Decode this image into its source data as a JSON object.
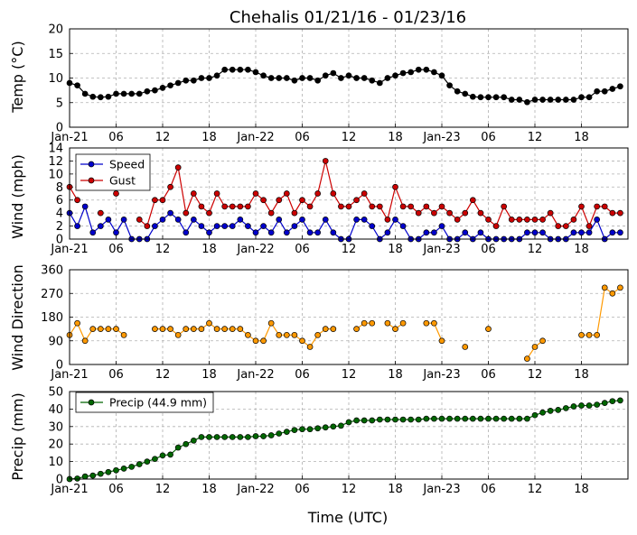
{
  "title": "Chehalis 01/21/16 - 01/23/16",
  "xlabel": "Time (UTC)",
  "x_tick_labels": [
    "Jan-21",
    "06",
    "12",
    "18",
    "Jan-22",
    "06",
    "12",
    "18",
    "Jan-23",
    "06",
    "12",
    "18"
  ],
  "chart_data": [
    {
      "type": "line",
      "ylabel": "Temp (°C)",
      "ylim": [
        0,
        20
      ],
      "yticks": [
        0,
        5,
        10,
        15,
        20
      ],
      "grid": true,
      "x_hours": [
        0,
        1,
        2,
        3,
        4,
        5,
        6,
        7,
        8,
        9,
        10,
        11,
        12,
        13,
        14,
        15,
        16,
        17,
        18,
        19,
        20,
        21,
        22,
        23,
        24,
        25,
        26,
        27,
        28,
        29,
        30,
        31,
        32,
        33,
        34,
        35,
        36,
        37,
        38,
        39,
        40,
        41,
        42,
        43,
        44,
        45,
        46,
        47,
        48,
        49,
        50,
        51,
        52,
        53,
        54,
        55,
        56,
        57,
        58,
        59,
        60,
        61,
        62,
        63,
        64,
        65,
        66,
        67,
        68,
        69,
        70,
        71
      ],
      "series": [
        {
          "color": "#000000",
          "values": [
            9,
            8.5,
            6.8,
            6.2,
            6.1,
            6.2,
            6.8,
            6.8,
            6.8,
            6.8,
            7.3,
            7.5,
            8,
            8.5,
            9,
            9.5,
            9.5,
            10,
            10,
            10.5,
            11.7,
            11.7,
            11.7,
            11.7,
            11.2,
            10.5,
            10,
            10,
            10,
            9.5,
            10,
            10,
            9.5,
            10.5,
            11,
            10,
            10.5,
            10,
            10,
            9.5,
            9,
            10,
            10.5,
            11,
            11.2,
            11.7,
            11.7,
            11.2,
            10.5,
            8.5,
            7.3,
            6.8,
            6.2,
            6.1,
            6.1,
            6.1,
            6.1,
            5.6,
            5.6,
            5.1,
            5.6,
            5.6,
            5.6,
            5.6,
            5.6,
            5.6,
            6.1,
            6.1,
            7.3,
            7.3,
            7.8,
            8.3
          ]
        }
      ]
    },
    {
      "type": "line",
      "ylabel": "Wind (mph)",
      "ylim": [
        0,
        14
      ],
      "yticks": [
        0,
        2,
        4,
        6,
        8,
        10,
        12,
        14
      ],
      "legend": "upper-left",
      "grid": true,
      "x_hours": [
        0,
        1,
        2,
        3,
        4,
        5,
        6,
        7,
        8,
        9,
        10,
        11,
        12,
        13,
        14,
        15,
        16,
        17,
        18,
        19,
        20,
        21,
        22,
        23,
        24,
        25,
        26,
        27,
        28,
        29,
        30,
        31,
        32,
        33,
        34,
        35,
        36,
        37,
        38,
        39,
        40,
        41,
        42,
        43,
        44,
        45,
        46,
        47,
        48,
        49,
        50,
        51,
        52,
        53,
        54,
        55,
        56,
        57,
        58,
        59,
        60,
        61,
        62,
        63,
        64,
        65,
        66,
        67,
        68,
        69,
        70,
        71
      ],
      "series": [
        {
          "name": "Speed",
          "color": "#0000cc",
          "values": [
            4,
            2,
            5,
            1,
            2,
            3,
            1,
            3,
            0,
            0,
            0,
            2,
            3,
            4,
            3,
            1,
            3,
            2,
            1,
            2,
            2,
            2,
            3,
            2,
            1,
            2,
            1,
            3,
            1,
            2,
            3,
            1,
            1,
            3,
            1,
            0,
            0,
            3,
            3,
            2,
            0,
            1,
            3,
            2,
            0,
            0,
            1,
            1,
            2,
            0,
            0,
            1,
            0,
            1,
            0,
            0,
            0,
            0,
            0,
            1,
            1,
            1,
            0,
            0,
            0,
            1,
            1,
            1,
            3,
            0,
            1,
            1
          ]
        },
        {
          "name": "Gust",
          "color": "#cc0000",
          "values": [
            8,
            6,
            null,
            null,
            4,
            null,
            7,
            null,
            null,
            3,
            2,
            6,
            6,
            8,
            11,
            4,
            7,
            5,
            4,
            7,
            5,
            5,
            5,
            5,
            7,
            6,
            4,
            6,
            7,
            4,
            6,
            5,
            7,
            12,
            7,
            5,
            5,
            6,
            7,
            5,
            5,
            3,
            8,
            5,
            5,
            4,
            5,
            4,
            5,
            4,
            3,
            4,
            6,
            4,
            3,
            2,
            5,
            3,
            3,
            3,
            3,
            3,
            4,
            2,
            2,
            3,
            5,
            2,
            5,
            5,
            4,
            4
          ]
        }
      ]
    },
    {
      "type": "scatter",
      "ylabel": "Wind Direction",
      "ylim": [
        0,
        360
      ],
      "yticks": [
        0,
        90,
        180,
        270,
        360
      ],
      "grid": true,
      "x_hours": [
        0,
        1,
        2,
        3,
        4,
        5,
        6,
        7,
        8,
        9,
        10,
        11,
        12,
        13,
        14,
        15,
        16,
        17,
        18,
        19,
        20,
        21,
        22,
        23,
        24,
        25,
        26,
        27,
        28,
        29,
        30,
        31,
        32,
        33,
        34,
        35,
        36,
        37,
        38,
        39,
        40,
        41,
        42,
        43,
        44,
        45,
        46,
        47,
        48,
        49,
        50,
        51,
        52,
        53,
        54,
        55,
        56,
        57,
        58,
        59,
        60,
        61,
        62,
        63,
        64,
        65,
        66,
        67,
        68,
        69,
        70,
        71
      ],
      "series": [
        {
          "color": "#ff9900",
          "values": [
            112,
            157,
            90,
            135,
            135,
            135,
            135,
            112,
            null,
            null,
            null,
            135,
            135,
            135,
            112,
            135,
            135,
            135,
            157,
            135,
            135,
            135,
            135,
            112,
            90,
            90,
            157,
            112,
            112,
            112,
            90,
            67,
            112,
            135,
            135,
            null,
            null,
            135,
            157,
            157,
            null,
            157,
            135,
            157,
            null,
            null,
            157,
            157,
            90,
            null,
            null,
            67,
            null,
            null,
            135,
            null,
            null,
            null,
            null,
            22,
            67,
            90,
            null,
            null,
            null,
            null,
            112,
            112,
            112,
            292,
            270,
            292
          ]
        }
      ]
    },
    {
      "type": "line",
      "ylabel": "Precip (mm)",
      "ylim": [
        0,
        50
      ],
      "yticks": [
        0,
        10,
        20,
        30,
        40,
        50
      ],
      "legend": "upper-left",
      "grid": true,
      "x_hours": [
        0,
        1,
        2,
        3,
        4,
        5,
        6,
        7,
        8,
        9,
        10,
        11,
        12,
        13,
        14,
        15,
        16,
        17,
        18,
        19,
        20,
        21,
        22,
        23,
        24,
        25,
        26,
        27,
        28,
        29,
        30,
        31,
        32,
        33,
        34,
        35,
        36,
        37,
        38,
        39,
        40,
        41,
        42,
        43,
        44,
        45,
        46,
        47,
        48,
        49,
        50,
        51,
        52,
        53,
        54,
        55,
        56,
        57,
        58,
        59,
        60,
        61,
        62,
        63,
        64,
        65,
        66,
        67,
        68,
        69,
        70,
        71
      ],
      "series": [
        {
          "name": "Precip (44.9 mm)",
          "color": "#006600",
          "values": [
            0,
            0.3,
            1.5,
            2,
            3,
            4,
            5,
            6,
            7,
            8.5,
            10,
            11.5,
            13.5,
            14,
            18,
            20,
            22,
            24,
            24,
            24,
            24,
            24,
            24,
            24,
            24.5,
            24.5,
            25,
            26,
            27,
            28,
            28.5,
            28.5,
            29,
            29.5,
            30,
            30.5,
            32.5,
            33.5,
            33.5,
            33.5,
            34,
            34,
            34,
            34,
            34,
            34,
            34.5,
            34.5,
            34.5,
            34.5,
            34.5,
            34.5,
            34.5,
            34.5,
            34.5,
            34.5,
            34.5,
            34.5,
            34.5,
            34.5,
            36.5,
            38,
            39,
            39.5,
            40.5,
            41.5,
            42,
            42,
            42.5,
            43.5,
            44.5,
            44.9
          ]
        }
      ]
    }
  ]
}
